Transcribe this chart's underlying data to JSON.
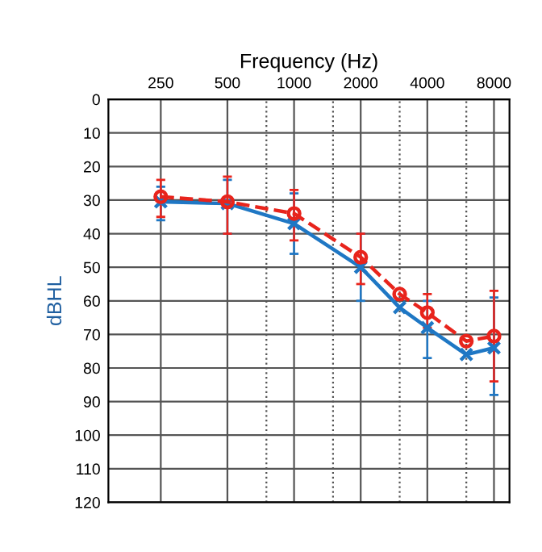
{
  "chart_data": {
    "type": "line",
    "xlabel": "Frequency (Hz)",
    "ylabel": "dBHL",
    "log": "x",
    "xlim": [
      145,
      9400
    ],
    "xticks": [
      250,
      500,
      {
        "value": 750,
        "label": null
      },
      1000,
      {
        "value": 1500,
        "label": null
      },
      2000,
      {
        "value": 3000,
        "label": null
      },
      4000,
      {
        "value": 6000,
        "label": null
      },
      8000
    ],
    "ylim": [
      120,
      0
    ],
    "yticks": [
      0,
      10,
      20,
      30,
      40,
      50,
      60,
      70,
      80,
      90,
      100,
      110,
      120
    ],
    "grid": true,
    "series": [
      {
        "color": "#1f77c4",
        "marker": "cross",
        "line_style": "solid",
        "x": [
          250,
          500,
          1000,
          2000,
          3000,
          4000,
          6000,
          8000
        ],
        "values": [
          30.5,
          31,
          37,
          50,
          62,
          68,
          76,
          74
        ],
        "errors": [
          [
            26,
            36
          ],
          [
            24,
            40
          ],
          [
            28,
            46
          ],
          [
            40,
            60
          ],
          null,
          [
            60,
            77
          ],
          null,
          [
            59,
            88
          ]
        ]
      },
      {
        "color": "#e8241c",
        "marker": "circle",
        "line_style": "dashed",
        "x": [
          250,
          500,
          1000,
          2000,
          3000,
          4000,
          6000,
          8000
        ],
        "values": [
          29,
          30.5,
          34,
          47,
          58,
          63.5,
          72,
          70.5
        ],
        "errors": [
          [
            24,
            35
          ],
          [
            23,
            40
          ],
          [
            27,
            42
          ],
          [
            40,
            55
          ],
          null,
          [
            58,
            68
          ],
          null,
          [
            57,
            84
          ]
        ]
      }
    ]
  }
}
